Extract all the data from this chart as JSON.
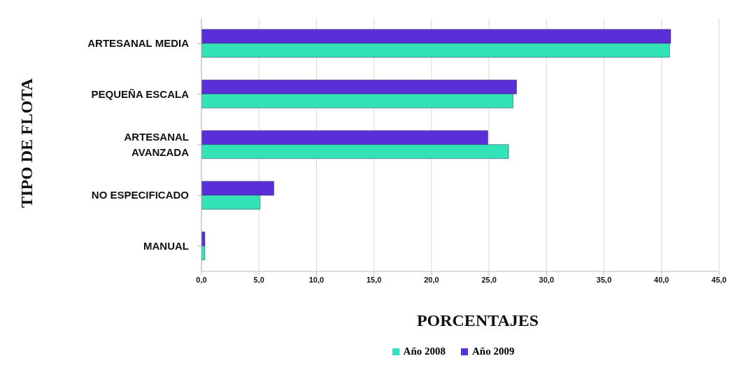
{
  "chart_data": {
    "type": "bar",
    "orientation": "horizontal",
    "xlabel": "PORCENTAJES",
    "ylabel": "TIPO DE FLOTA",
    "categories": [
      "ARTESANAL MEDIA",
      "PEQUEÑA ESCALA",
      "ARTESANAL\nAVANZADA",
      "NO ESPECIFICADO",
      "MANUAL"
    ],
    "series": [
      {
        "name": "Año 2008",
        "color": "#33e3b8",
        "values": [
          40.7,
          27.1,
          26.7,
          5.1,
          0.3
        ]
      },
      {
        "name": "Año 2009",
        "color": "#5a2fd8",
        "values": [
          40.8,
          27.4,
          24.9,
          6.3,
          0.3
        ]
      }
    ],
    "xlim": [
      0,
      45
    ],
    "xticks": [
      {
        "value": 0,
        "label": "0,0"
      },
      {
        "value": 5,
        "label": "5,0"
      },
      {
        "value": 10,
        "label": "10,0"
      },
      {
        "value": 15,
        "label": "15,0"
      },
      {
        "value": 20,
        "label": "20,0"
      },
      {
        "value": 25,
        "label": "25,0"
      },
      {
        "value": 30,
        "label": "30,0"
      },
      {
        "value": 35,
        "label": "35,0"
      },
      {
        "value": 40,
        "label": "40,0"
      },
      {
        "value": 45,
        "label": "45,0"
      }
    ],
    "grid": "x",
    "legend": "bottom"
  }
}
